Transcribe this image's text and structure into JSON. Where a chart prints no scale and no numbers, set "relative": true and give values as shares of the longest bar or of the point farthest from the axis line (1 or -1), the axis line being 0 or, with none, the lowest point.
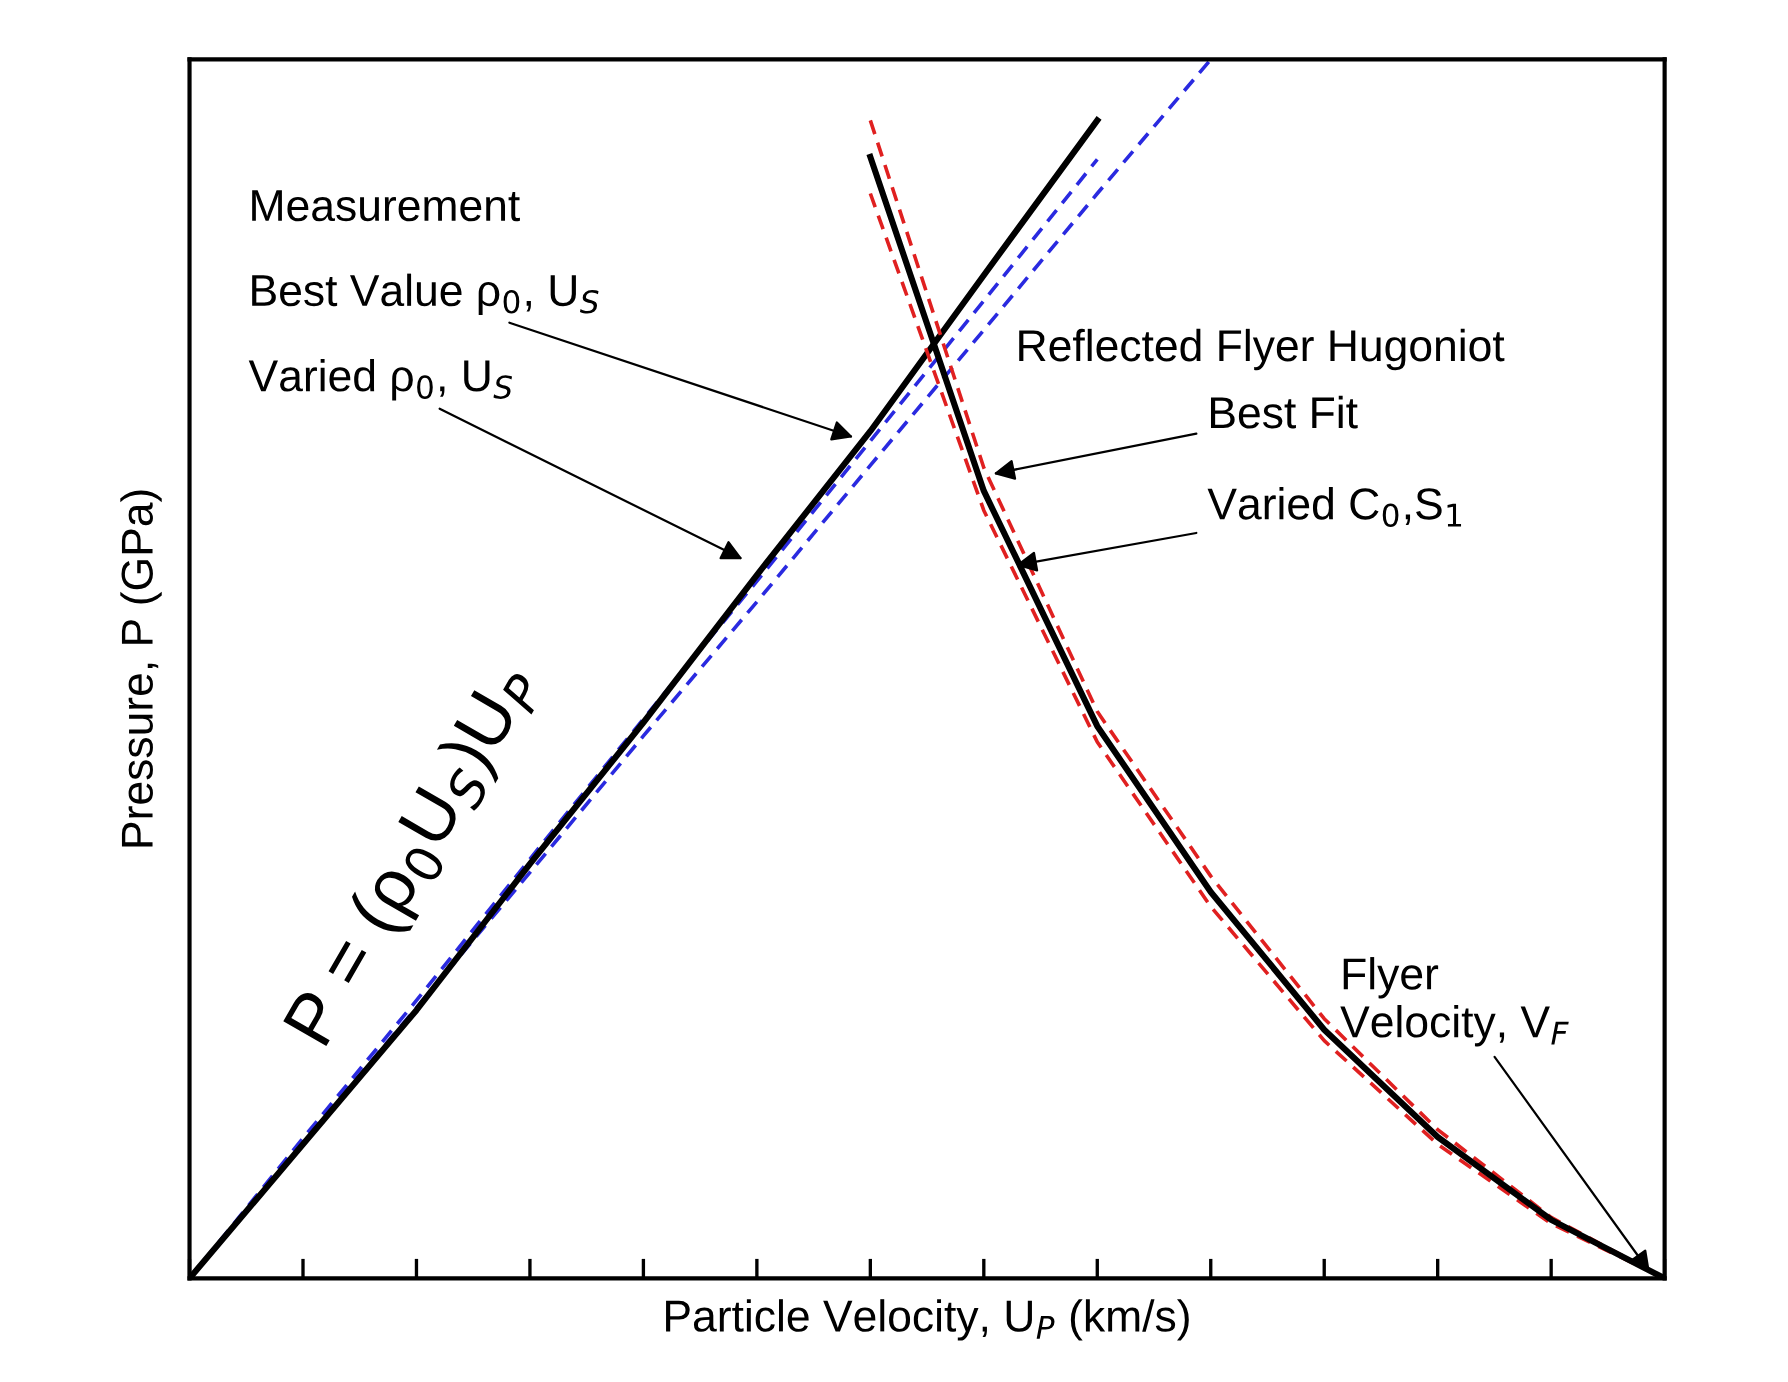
{
  "chart_data": {
    "type": "line",
    "relative": true,
    "xlabel": "Particle Velocity, U$_{P}$ (km/s)",
    "ylabel": "Pressure, P (GPa)",
    "categories": [
      null,
      null,
      null,
      null,
      null,
      null,
      null,
      null,
      null,
      null,
      null,
      null,
      null,
      null
    ],
    "series": [
      {
        "color": "#2a2ae0",
        "line_style": "dashed",
        "values": [
          0,
          0.115,
          0.228,
          0.344,
          0.459,
          0.572,
          0.687,
          0.802,
          0.918,
          null,
          null,
          null,
          null,
          null
        ]
      },
      {
        "color": "#2a2ae0",
        "line_style": "dashed",
        "values": [
          0,
          0.112,
          0.222,
          0.333,
          0.445,
          0.555,
          0.667,
          0.778,
          0.89,
          1.0,
          null,
          null,
          null,
          null
        ]
      },
      {
        "color": "#000000",
        "line_style": "solid",
        "values": [
          0,
          0.11,
          0.22,
          0.34,
          0.456,
          0.577,
          0.695,
          0.823,
          0.95,
          null,
          null,
          null,
          null,
          null
        ]
      },
      {
        "color": "#e02020",
        "line_style": "dashed",
        "values": [
          null,
          null,
          null,
          null,
          null,
          null,
          0.89,
          0.63,
          0.44,
          0.305,
          0.195,
          0.11,
          0.045,
          0
        ]
      },
      {
        "color": "#e02020",
        "line_style": "dashed",
        "values": [
          null,
          null,
          null,
          null,
          null,
          null,
          0.95,
          0.665,
          0.465,
          0.33,
          0.213,
          0.122,
          0.05,
          0
        ]
      },
      {
        "color": "#000000",
        "line_style": "solid",
        "values": [
          null,
          null,
          null,
          null,
          null,
          null,
          0.92,
          0.646,
          0.453,
          0.317,
          0.204,
          0.116,
          0.048,
          0
        ]
      }
    ],
    "annotations": [
      "Measurement",
      "Best Value ρ$_{0}$, U$_{S}$",
      "Varied ρ$_{0}$, U$_{S}$",
      "Reflected Flyer Hugoniot",
      "Best Fit",
      "Varied C$_{0}$,S$_{1}$",
      "Flyer\nVelocity, V$_{F}$",
      "P = (ρ$_{0}$U$_{S}$)U$_{P}$"
    ],
    "grid": false,
    "legend": false,
    "marker": "none"
  }
}
